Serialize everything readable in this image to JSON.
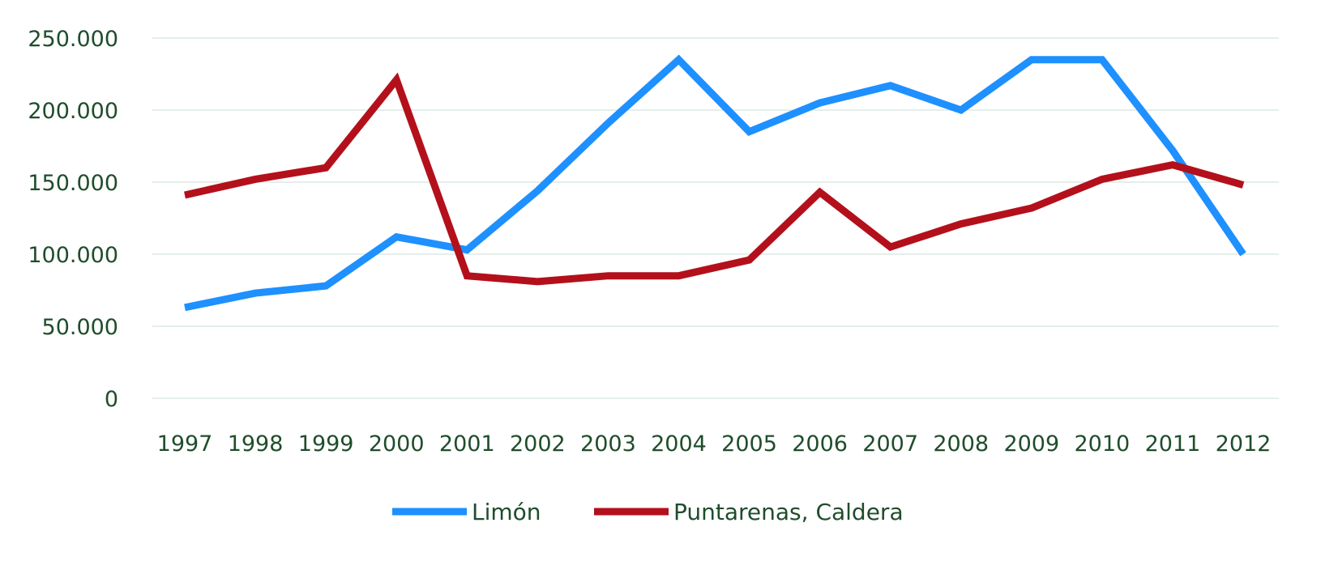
{
  "chart_data": {
    "type": "line",
    "title": "",
    "xlabel": "",
    "ylabel": "",
    "categories": [
      "1997",
      "1998",
      "1999",
      "2000",
      "2001",
      "2002",
      "2003",
      "2004",
      "2005",
      "2006",
      "2007",
      "2008",
      "2009",
      "2010",
      "2011",
      "2012"
    ],
    "ylim": [
      0,
      250000
    ],
    "y_ticks": [
      0,
      50000,
      100000,
      150000,
      200000,
      250000
    ],
    "y_tick_labels": [
      "0",
      "50.000",
      "100.000",
      "150.000",
      "200.000",
      "250.000"
    ],
    "grid": true,
    "legend_position": "bottom",
    "series": [
      {
        "name": "Limón",
        "color": "#1e90ff",
        "values": [
          63000,
          73000,
          78000,
          112000,
          103000,
          144000,
          191000,
          235000,
          185000,
          205000,
          217000,
          200000,
          235000,
          235000,
          172000,
          100000
        ]
      },
      {
        "name": "Puntarenas, Caldera",
        "color": "#b3101c",
        "values": [
          141000,
          152000,
          160000,
          221000,
          85000,
          81000,
          85000,
          85000,
          96000,
          143000,
          105000,
          121000,
          132000,
          152000,
          162000,
          148000
        ]
      }
    ],
    "colors": {
      "axis_text": "#1f4d2b",
      "grid": "#dde8e6"
    }
  }
}
